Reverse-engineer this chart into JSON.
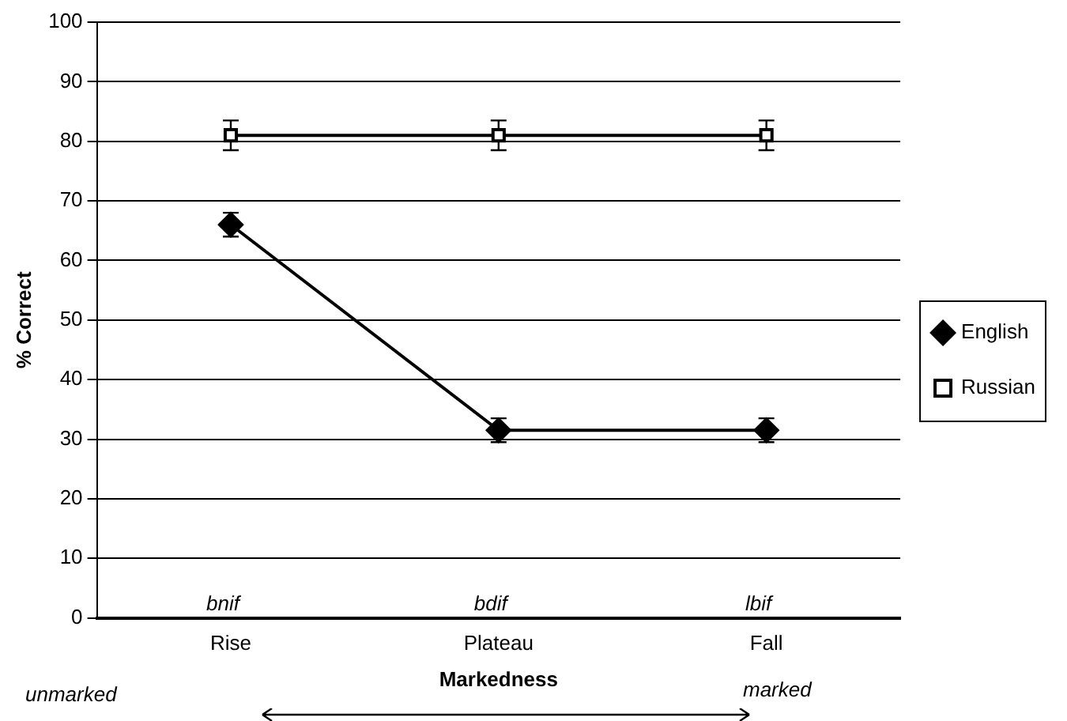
{
  "chart_data": {
    "type": "line",
    "xlabel": "Markedness",
    "ylabel": "% Correct",
    "categories": [
      "Rise",
      "Plateau",
      "Fall"
    ],
    "series": [
      {
        "name": "English",
        "color": "#000000",
        "values": [
          66,
          31.5,
          31.5
        ],
        "marker": "diamond",
        "errors": [
          2,
          2,
          2
        ]
      },
      {
        "name": "Russian",
        "color": "#000000",
        "values": [
          81,
          81,
          81
        ],
        "marker": "square",
        "errors": [
          2.5,
          2.5,
          2.5
        ]
      }
    ],
    "ylim": [
      0,
      100
    ],
    "yticks": [
      0,
      10,
      20,
      30,
      40,
      50,
      60,
      70,
      80,
      90,
      100
    ],
    "grid": "y",
    "legend": "right",
    "annotations": [
      "bnif",
      "bdif",
      "lbif",
      "unmarked",
      "marked"
    ]
  }
}
